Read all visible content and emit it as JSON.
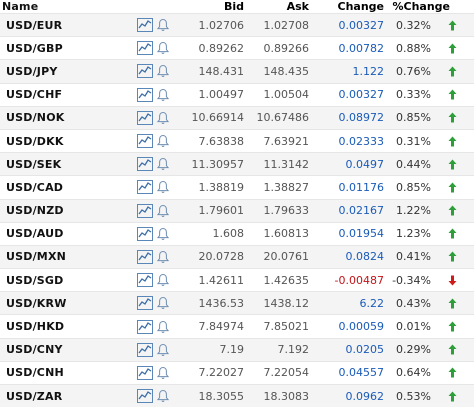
{
  "header": {
    "name": "Name",
    "bid": "Bid",
    "ask": "Ask",
    "change": "Change",
    "pct_change": "%Change"
  },
  "colors": {
    "up": "#2e9e3a",
    "down": "#d01b1b",
    "change_text": "#1a5bb8",
    "row_alt": "#f4f4f4"
  },
  "rows": [
    {
      "name": "USD/EUR",
      "bid": "1.02706",
      "ask": "1.02708",
      "change": "0.00327",
      "pct": "0.32%",
      "dir": "up"
    },
    {
      "name": "USD/GBP",
      "bid": "0.89262",
      "ask": "0.89266",
      "change": "0.00782",
      "pct": "0.88%",
      "dir": "up"
    },
    {
      "name": "USD/JPY",
      "bid": "148.431",
      "ask": "148.435",
      "change": "1.122",
      "pct": "0.76%",
      "dir": "up"
    },
    {
      "name": "USD/CHF",
      "bid": "1.00497",
      "ask": "1.00504",
      "change": "0.00327",
      "pct": "0.33%",
      "dir": "up"
    },
    {
      "name": "USD/NOK",
      "bid": "10.66914",
      "ask": "10.67486",
      "change": "0.08972",
      "pct": "0.85%",
      "dir": "up"
    },
    {
      "name": "USD/DKK",
      "bid": "7.63838",
      "ask": "7.63921",
      "change": "0.02333",
      "pct": "0.31%",
      "dir": "up"
    },
    {
      "name": "USD/SEK",
      "bid": "11.30957",
      "ask": "11.3142",
      "change": "0.0497",
      "pct": "0.44%",
      "dir": "up"
    },
    {
      "name": "USD/CAD",
      "bid": "1.38819",
      "ask": "1.38827",
      "change": "0.01176",
      "pct": "0.85%",
      "dir": "up"
    },
    {
      "name": "USD/NZD",
      "bid": "1.79601",
      "ask": "1.79633",
      "change": "0.02167",
      "pct": "1.22%",
      "dir": "up"
    },
    {
      "name": "USD/AUD",
      "bid": "1.608",
      "ask": "1.60813",
      "change": "0.01954",
      "pct": "1.23%",
      "dir": "up"
    },
    {
      "name": "USD/MXN",
      "bid": "20.0728",
      "ask": "20.0761",
      "change": "0.0824",
      "pct": "0.41%",
      "dir": "up"
    },
    {
      "name": "USD/SGD",
      "bid": "1.42611",
      "ask": "1.42635",
      "change": "-0.00487",
      "pct": "-0.34%",
      "dir": "down"
    },
    {
      "name": "USD/KRW",
      "bid": "1436.53",
      "ask": "1438.12",
      "change": "6.22",
      "pct": "0.43%",
      "dir": "up"
    },
    {
      "name": "USD/HKD",
      "bid": "7.84974",
      "ask": "7.85021",
      "change": "0.00059",
      "pct": "0.01%",
      "dir": "up"
    },
    {
      "name": "USD/CNY",
      "bid": "7.19",
      "ask": "7.192",
      "change": "0.0205",
      "pct": "0.29%",
      "dir": "up"
    },
    {
      "name": "USD/CNH",
      "bid": "7.22027",
      "ask": "7.22054",
      "change": "0.04557",
      "pct": "0.64%",
      "dir": "up"
    },
    {
      "name": "USD/ZAR",
      "bid": "18.3055",
      "ask": "18.3083",
      "change": "0.0962",
      "pct": "0.53%",
      "dir": "up"
    }
  ]
}
